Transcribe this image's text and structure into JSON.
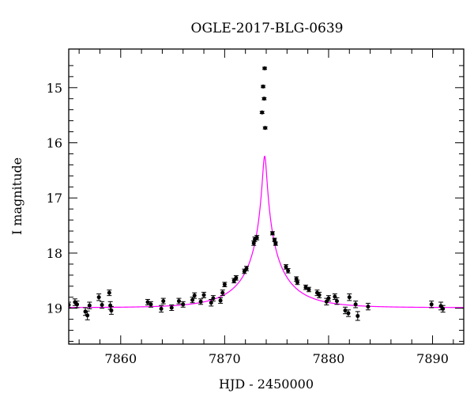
{
  "chart_data": {
    "type": "scatter",
    "title": "OGLE-2017-BLG-0639",
    "xlabel": "HJD - 2450000",
    "ylabel": "I magnitude",
    "xlim": [
      7855,
      7893
    ],
    "ylim": [
      19.65,
      14.3
    ],
    "y_inverted": true,
    "grid": false,
    "x_major_ticks": [
      7860,
      7870,
      7880,
      7890
    ],
    "y_major_ticks": [
      15,
      16,
      17,
      18,
      19
    ],
    "x_tick_labels": [
      "7860",
      "7870",
      "7880",
      "7890"
    ],
    "y_tick_labels": [
      "15",
      "16",
      "17",
      "18",
      "19"
    ],
    "model": {
      "name": "",
      "color": "#ff00ff",
      "t0": 7873.85,
      "u0": 0.0415,
      "tE": 4.63,
      "baseline_mag": 18.99,
      "blend_fraction": 0.5
    },
    "series": [
      {
        "name": "",
        "color": "#000000",
        "x": [
          7855.0,
          7855.6,
          7855.8,
          7856.6,
          7856.8,
          7857.0,
          7857.9,
          7858.2,
          7858.9,
          7859.0,
          7859.1,
          7862.6,
          7862.9,
          7863.9,
          7864.1,
          7864.9,
          7865.6,
          7866.0,
          7866.9,
          7867.1,
          7867.7,
          7868.0,
          7868.7,
          7868.9,
          7869.6,
          7869.8,
          7870.0,
          7870.9,
          7871.1,
          7871.9,
          7872.1,
          7872.8,
          7872.9,
          7873.1,
          7873.6,
          7873.7,
          7873.8,
          7873.85,
          7873.9,
          7874.6,
          7874.8,
          7874.9,
          7875.9,
          7876.1,
          7876.9,
          7877.0,
          7877.8,
          7878.1,
          7878.9,
          7879.1,
          7879.8,
          7880.0,
          7880.6,
          7880.8,
          7881.6,
          7881.9,
          7882.0,
          7882.6,
          7882.8,
          7883.8,
          7889.9,
          7890.8,
          7891.0
        ],
        "y": [
          18.94,
          18.89,
          18.93,
          19.06,
          19.13,
          18.95,
          18.8,
          18.94,
          18.72,
          18.95,
          19.04,
          18.89,
          18.93,
          19.01,
          18.87,
          18.99,
          18.87,
          18.93,
          18.85,
          18.77,
          18.88,
          18.76,
          18.9,
          18.82,
          18.86,
          18.72,
          18.57,
          18.5,
          18.45,
          18.33,
          18.28,
          17.82,
          17.75,
          17.72,
          15.45,
          14.98,
          15.2,
          14.65,
          15.73,
          17.64,
          17.76,
          17.83,
          18.25,
          18.32,
          18.47,
          18.53,
          18.62,
          18.66,
          18.72,
          18.76,
          18.88,
          18.82,
          18.79,
          18.87,
          19.04,
          19.09,
          18.8,
          18.93,
          19.14,
          18.97,
          18.93,
          18.96,
          19.01
        ],
        "err": [
          0.05,
          0.06,
          0.06,
          0.07,
          0.08,
          0.06,
          0.06,
          0.06,
          0.05,
          0.07,
          0.07,
          0.05,
          0.05,
          0.06,
          0.05,
          0.05,
          0.05,
          0.05,
          0.05,
          0.05,
          0.05,
          0.05,
          0.06,
          0.05,
          0.05,
          0.05,
          0.04,
          0.04,
          0.04,
          0.04,
          0.04,
          0.04,
          0.04,
          0.04,
          0.02,
          0.02,
          0.02,
          0.02,
          0.02,
          0.03,
          0.03,
          0.03,
          0.04,
          0.04,
          0.04,
          0.04,
          0.04,
          0.04,
          0.05,
          0.05,
          0.06,
          0.05,
          0.05,
          0.06,
          0.06,
          0.06,
          0.06,
          0.06,
          0.08,
          0.06,
          0.06,
          0.07,
          0.06
        ]
      }
    ]
  }
}
